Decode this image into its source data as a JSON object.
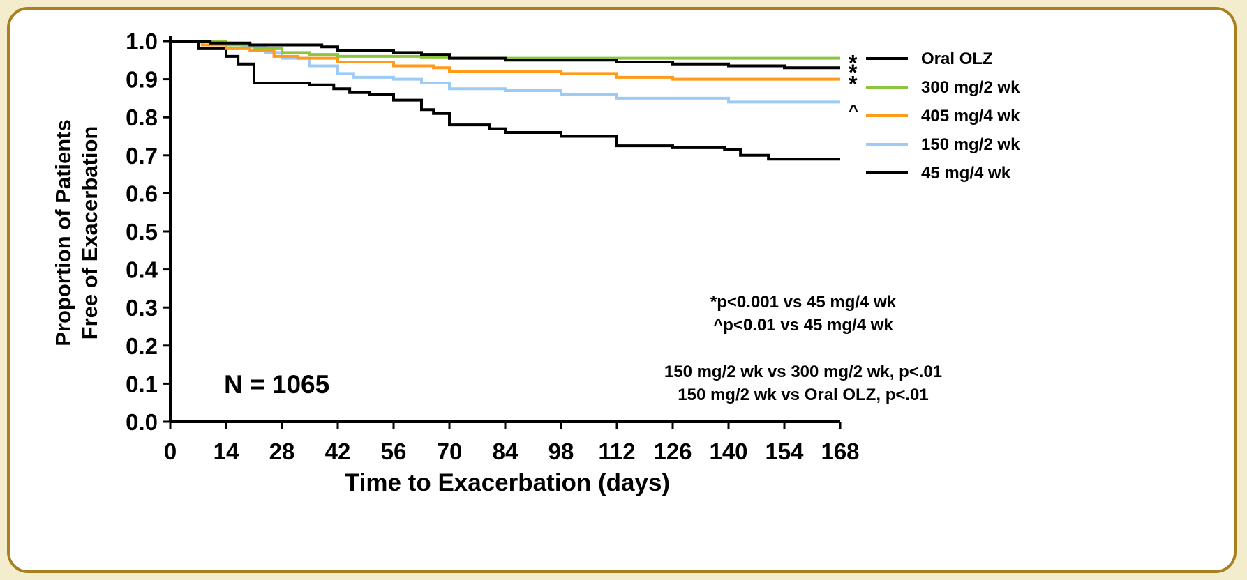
{
  "chart_data": {
    "type": "line",
    "step": true,
    "xlabel": "Time to Exacerbation (days)",
    "ylabel_lines": [
      "Proportion of Patients",
      "Free of Exacerbation"
    ],
    "xlim": [
      0,
      168
    ],
    "ylim": [
      0.0,
      1.0
    ],
    "xticks": [
      0,
      14,
      28,
      42,
      56,
      70,
      84,
      98,
      112,
      126,
      140,
      154,
      168
    ],
    "yticks": [
      0.0,
      0.1,
      0.2,
      0.3,
      0.4,
      0.5,
      0.6,
      0.7,
      0.8,
      0.9,
      1.0
    ],
    "ytick_labels": [
      "0.0",
      "0.1",
      "0.2",
      "0.3",
      "0.4",
      "0.5",
      "0.6",
      "0.7",
      "0.8",
      "0.9",
      "1.0"
    ],
    "grid": false,
    "legend_placement": "top-right",
    "series": [
      {
        "name": "Oral OLZ",
        "color": "#000000",
        "marker": "*",
        "points": [
          [
            0,
            1.0
          ],
          [
            10,
            0.995
          ],
          [
            20,
            0.99
          ],
          [
            30,
            0.99
          ],
          [
            38,
            0.985
          ],
          [
            42,
            0.975
          ],
          [
            56,
            0.97
          ],
          [
            63,
            0.965
          ],
          [
            70,
            0.955
          ],
          [
            84,
            0.95
          ],
          [
            98,
            0.95
          ],
          [
            112,
            0.945
          ],
          [
            126,
            0.94
          ],
          [
            140,
            0.935
          ],
          [
            154,
            0.93
          ],
          [
            168,
            0.93
          ]
        ]
      },
      {
        "name": "300 mg/2 wk",
        "color": "#8cc63f",
        "marker": "*",
        "points": [
          [
            0,
            1.0
          ],
          [
            8,
            1.0
          ],
          [
            14,
            0.99
          ],
          [
            21,
            0.98
          ],
          [
            28,
            0.97
          ],
          [
            35,
            0.965
          ],
          [
            42,
            0.96
          ],
          [
            56,
            0.96
          ],
          [
            63,
            0.958
          ],
          [
            70,
            0.955
          ],
          [
            84,
            0.955
          ],
          [
            112,
            0.955
          ],
          [
            140,
            0.955
          ],
          [
            168,
            0.955
          ]
        ]
      },
      {
        "name": "405 mg/4 wk",
        "color": "#ff9a1a",
        "marker": "*",
        "points": [
          [
            0,
            1.0
          ],
          [
            8,
            0.99
          ],
          [
            14,
            0.98
          ],
          [
            20,
            0.975
          ],
          [
            26,
            0.96
          ],
          [
            32,
            0.955
          ],
          [
            42,
            0.945
          ],
          [
            56,
            0.935
          ],
          [
            66,
            0.93
          ],
          [
            70,
            0.92
          ],
          [
            84,
            0.92
          ],
          [
            98,
            0.915
          ],
          [
            112,
            0.905
          ],
          [
            126,
            0.9
          ],
          [
            140,
            0.9
          ],
          [
            168,
            0.9
          ]
        ]
      },
      {
        "name": "150 mg/2 wk",
        "color": "#9dcbf5",
        "marker": "^",
        "points": [
          [
            0,
            1.0
          ],
          [
            10,
            0.995
          ],
          [
            18,
            0.985
          ],
          [
            24,
            0.97
          ],
          [
            28,
            0.955
          ],
          [
            35,
            0.935
          ],
          [
            42,
            0.915
          ],
          [
            46,
            0.905
          ],
          [
            56,
            0.9
          ],
          [
            63,
            0.89
          ],
          [
            70,
            0.875
          ],
          [
            84,
            0.87
          ],
          [
            98,
            0.86
          ],
          [
            112,
            0.85
          ],
          [
            126,
            0.85
          ],
          [
            140,
            0.84
          ],
          [
            168,
            0.84
          ]
        ]
      },
      {
        "name": "45 mg/4 wk",
        "color": "#000000",
        "marker": "",
        "points": [
          [
            0,
            1.0
          ],
          [
            7,
            0.98
          ],
          [
            14,
            0.96
          ],
          [
            17,
            0.94
          ],
          [
            21,
            0.89
          ],
          [
            35,
            0.885
          ],
          [
            41,
            0.875
          ],
          [
            45,
            0.865
          ],
          [
            50,
            0.86
          ],
          [
            56,
            0.845
          ],
          [
            63,
            0.82
          ],
          [
            66,
            0.81
          ],
          [
            70,
            0.78
          ],
          [
            80,
            0.77
          ],
          [
            84,
            0.76
          ],
          [
            98,
            0.75
          ],
          [
            112,
            0.725
          ],
          [
            126,
            0.72
          ],
          [
            139,
            0.715
          ],
          [
            143,
            0.7
          ],
          [
            150,
            0.69
          ],
          [
            168,
            0.69
          ]
        ]
      }
    ],
    "annotations": {
      "n_label": "N = 1065",
      "significance": [
        "*p<0.001 vs 45 mg/4 wk",
        "^p<0.01 vs 45 mg/4 wk"
      ],
      "comparisons": [
        "150 mg/2 wk vs 300 mg/2 wk, p<.01",
        "150 mg/2 wk vs Oral OLZ, p<.01"
      ]
    }
  }
}
